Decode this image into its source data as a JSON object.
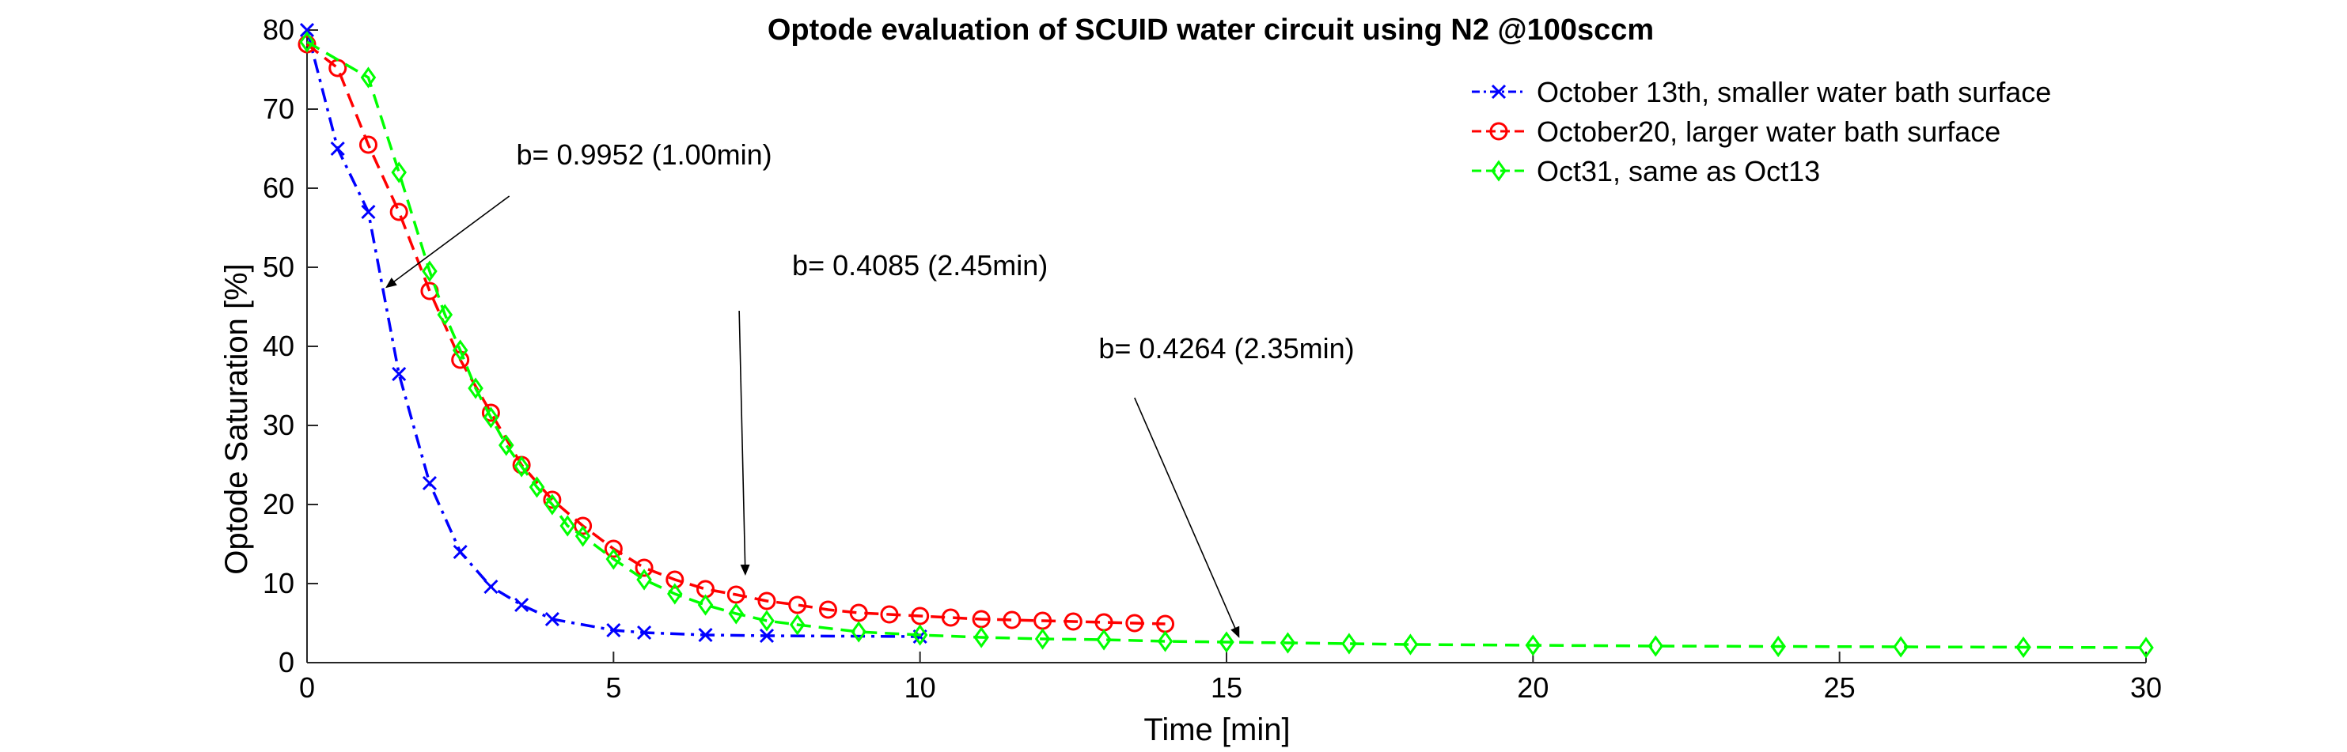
{
  "chart_data": {
    "type": "line",
    "title": "Optode evaluation of SCUID water circuit using N2 @100sccm",
    "xlabel": "Time [min]",
    "ylabel": "Optode Saturation [%]",
    "xlim": [
      0,
      30
    ],
    "ylim": [
      0,
      80
    ],
    "xticks": [
      0,
      5,
      10,
      15,
      20,
      25,
      30
    ],
    "yticks": [
      0,
      10,
      20,
      30,
      40,
      50,
      60,
      70,
      80
    ],
    "grid": false,
    "legend_position": "top-right",
    "series": [
      {
        "name": "October 13th, smaller water bath surface",
        "color": "#0000ff",
        "marker": "x",
        "line_style": "dash-dot",
        "x": [
          0,
          0.5,
          1,
          1.5,
          2,
          2.5,
          3,
          3.5,
          4,
          5,
          5.5,
          6.5,
          7.5,
          10
        ],
        "y": [
          80,
          65,
          57,
          36.5,
          22.7,
          14,
          9.6,
          7.3,
          5.5,
          4.1,
          3.8,
          3.5,
          3.4,
          3.3
        ]
      },
      {
        "name": "October20, larger water bath surface",
        "color": "#ff0000",
        "marker": "o",
        "line_style": "dashed",
        "x": [
          0,
          0.5,
          1,
          1.5,
          2,
          2.5,
          3,
          3.5,
          4,
          4.5,
          5,
          5.5,
          6,
          6.5,
          7,
          7.5,
          8,
          8.5,
          9,
          9.5,
          10,
          10.5,
          11,
          11.5,
          12,
          12.5,
          13,
          13.5,
          14
        ],
        "y": [
          78.2,
          75.2,
          65.5,
          57,
          47,
          38.3,
          31.6,
          25,
          20.6,
          17.3,
          14.4,
          12,
          10.5,
          9.3,
          8.6,
          7.8,
          7.3,
          6.7,
          6.3,
          6.1,
          5.9,
          5.7,
          5.5,
          5.4,
          5.3,
          5.2,
          5.1,
          5.0,
          4.9
        ]
      },
      {
        "name": "Oct31, same as Oct13",
        "color": "#00ff00",
        "marker": "d",
        "line_style": "dashed",
        "x": [
          0,
          1,
          1.5,
          2,
          2.25,
          2.5,
          2.75,
          3,
          3.25,
          3.5,
          3.75,
          4,
          4.25,
          4.5,
          5,
          5.5,
          6,
          6.5,
          7,
          7.5,
          8,
          9,
          10,
          11,
          12,
          13,
          14,
          15,
          16,
          17,
          18,
          20,
          22,
          24,
          26,
          28,
          30
        ],
        "y": [
          78.5,
          74,
          62,
          49.5,
          44,
          39.5,
          34.7,
          31,
          27.5,
          24.8,
          22.2,
          20,
          17.3,
          16,
          13.1,
          10.5,
          8.7,
          7.3,
          6.2,
          5.3,
          4.8,
          3.9,
          3.5,
          3.2,
          3.0,
          2.9,
          2.7,
          2.6,
          2.5,
          2.4,
          2.3,
          2.2,
          2.1,
          2.05,
          2.0,
          1.95,
          1.9
        ]
      }
    ],
    "annotations": [
      {
        "text": "b= 0.9952 (1.00min)",
        "label_at": [
          5.5,
          63
        ],
        "arrow_from": [
          3.3,
          59
        ],
        "arrow_to": [
          1.3,
          47.5
        ]
      },
      {
        "text": "b= 0.4085 (2.45min)",
        "label_at": [
          10,
          49
        ],
        "arrow_from": [
          7.05,
          44.5
        ],
        "arrow_to": [
          7.15,
          11.2
        ]
      },
      {
        "text": "b= 0.4264 (2.35min)",
        "label_at": [
          15,
          38.5
        ],
        "arrow_from": [
          13.5,
          33.5
        ],
        "arrow_to": [
          15.2,
          3.3
        ]
      }
    ]
  }
}
